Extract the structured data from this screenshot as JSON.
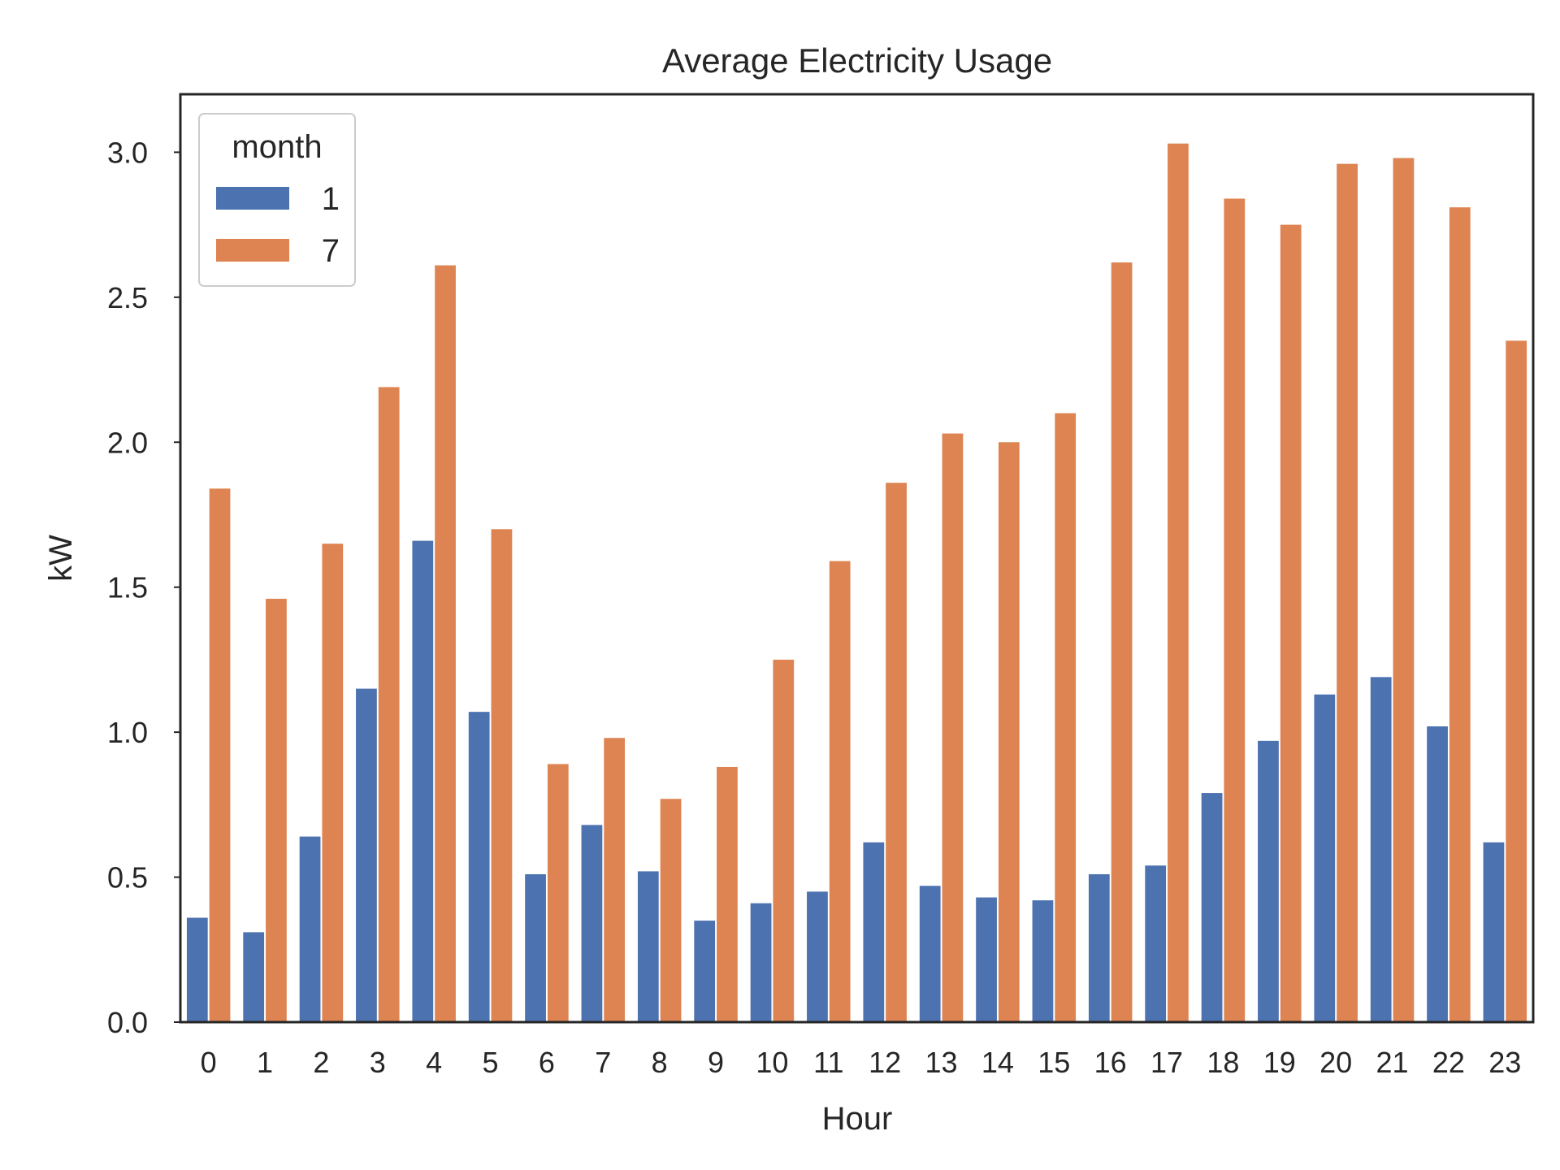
{
  "chart_data": {
    "type": "bar",
    "title": "Average Electricity Usage",
    "xlabel": "Hour",
    "ylabel": "kW",
    "ylim": [
      0,
      3.2
    ],
    "yticks": [
      "0.0",
      "0.5",
      "1.0",
      "1.5",
      "2.0",
      "2.5",
      "3.0"
    ],
    "categories": [
      "0",
      "1",
      "2",
      "3",
      "4",
      "5",
      "6",
      "7",
      "8",
      "9",
      "10",
      "11",
      "12",
      "13",
      "14",
      "15",
      "16",
      "17",
      "18",
      "19",
      "20",
      "21",
      "22",
      "23"
    ],
    "legend": {
      "title": "month",
      "position": "top-left"
    },
    "grid": false,
    "series": [
      {
        "name": "1",
        "color": "#4c72b0",
        "values": [
          0.36,
          0.31,
          0.64,
          1.15,
          1.66,
          1.07,
          0.51,
          0.68,
          0.52,
          0.35,
          0.41,
          0.45,
          0.62,
          0.47,
          0.43,
          0.42,
          0.51,
          0.54,
          0.79,
          0.97,
          1.13,
          1.19,
          1.02,
          0.62
        ]
      },
      {
        "name": "7",
        "color": "#dd8452",
        "values": [
          1.84,
          1.46,
          1.65,
          2.19,
          2.61,
          1.7,
          0.89,
          0.98,
          0.77,
          0.88,
          1.25,
          1.59,
          1.86,
          2.03,
          2.0,
          2.1,
          2.62,
          3.03,
          2.84,
          2.75,
          2.96,
          2.98,
          2.81,
          2.35
        ]
      }
    ]
  }
}
